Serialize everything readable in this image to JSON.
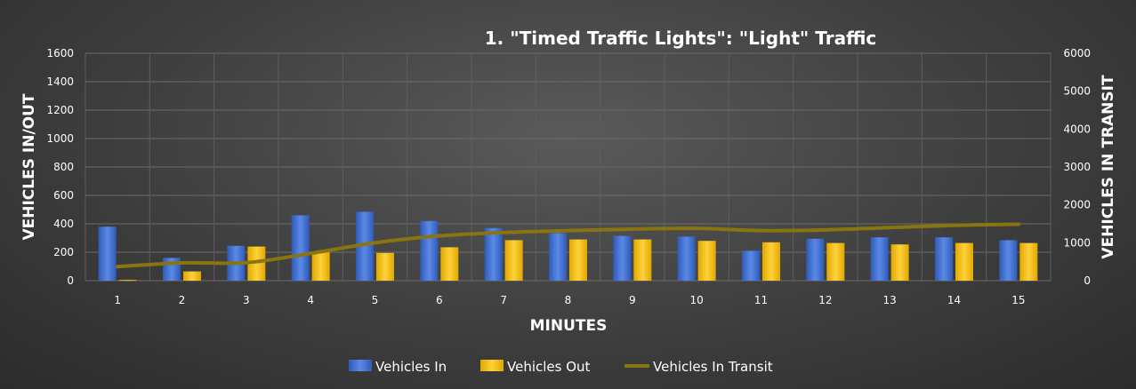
{
  "chart_data": {
    "type": "bar",
    "title": "1. \"Timed Traffic Lights\": \"Light\" Traffic",
    "xlabel": "MINUTES",
    "ylabel": "VEHICLES IN/OUT",
    "y2label": "VEHICLES IN TRANSIT",
    "categories": [
      "1",
      "2",
      "3",
      "4",
      "5",
      "6",
      "7",
      "8",
      "9",
      "10",
      "11",
      "12",
      "13",
      "14",
      "15"
    ],
    "ylim": [
      0,
      1600
    ],
    "yticks": [
      "0",
      "200",
      "400",
      "600",
      "800",
      "1000",
      "1200",
      "1400",
      "1600"
    ],
    "y2lim": [
      0,
      6000
    ],
    "y2ticks": [
      "0",
      "1000",
      "2000",
      "3000",
      "4000",
      "5000",
      "6000"
    ],
    "grid": true,
    "legend_position": "bottom",
    "series": [
      {
        "name": "Vehicles In",
        "type": "bar",
        "axis": "left",
        "color": "#4472c4",
        "values": [
          380,
          160,
          245,
          460,
          485,
          420,
          370,
          335,
          315,
          310,
          210,
          295,
          305,
          305,
          285
        ]
      },
      {
        "name": "Vehicles Out",
        "type": "bar",
        "axis": "left",
        "color": "#ffc000",
        "values": [
          5,
          65,
          240,
          200,
          195,
          235,
          285,
          290,
          290,
          280,
          270,
          265,
          255,
          265,
          265
        ]
      },
      {
        "name": "Vehicles In Transit",
        "type": "line",
        "axis": "right",
        "color": "#8a7410",
        "values": [
          370,
          470,
          475,
          720,
          1000,
          1180,
          1270,
          1320,
          1360,
          1380,
          1320,
          1340,
          1400,
          1460,
          1490
        ]
      }
    ]
  }
}
